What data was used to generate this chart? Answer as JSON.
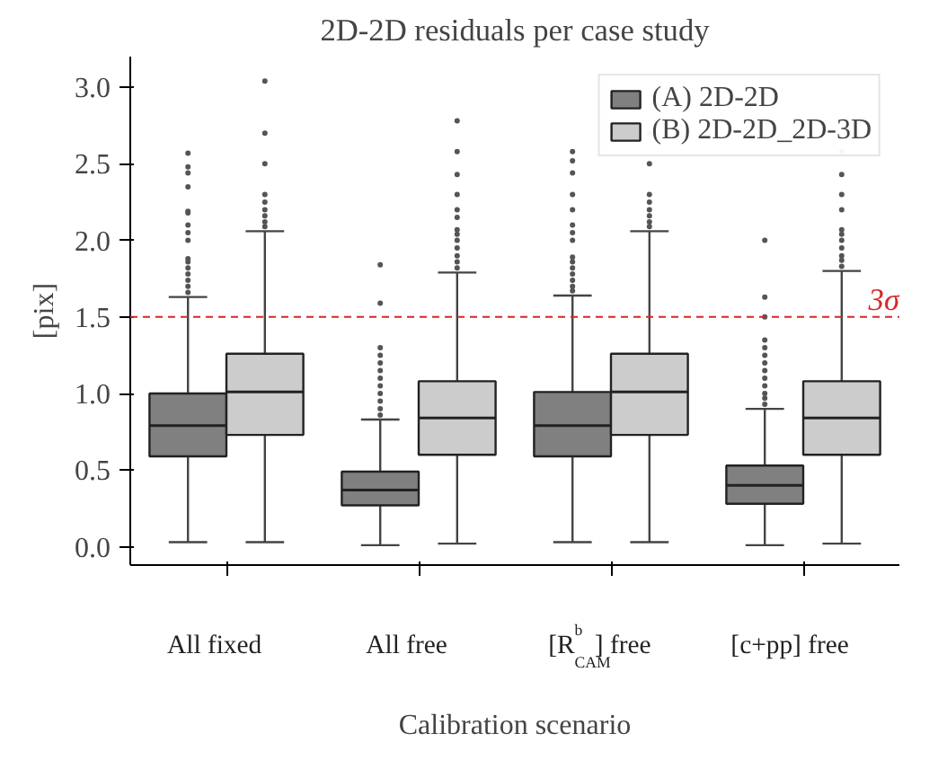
{
  "chart_data": {
    "type": "box",
    "title": "2D-2D residuals per case study",
    "xlabel": "Calibration scenario",
    "ylabel": "[pix]",
    "categories": [
      "All fixed",
      "All free",
      "[R$^{b}$$_{CAM}$] free",
      "[c+pp] free"
    ],
    "ylim": [
      -0.12,
      3.2
    ],
    "yticks": [
      {
        "value": 0,
        "label": "0.0"
      },
      {
        "value": 0.5,
        "label": "0.5"
      },
      {
        "value": 1,
        "label": "1.0"
      },
      {
        "value": 1.5,
        "label": "1.5"
      },
      {
        "value": 2,
        "label": "2.0"
      },
      {
        "value": 2.5,
        "label": "2.5"
      },
      {
        "value": 3,
        "label": "3.0"
      }
    ],
    "legend": "top right",
    "grid": false,
    "ref_lines": [
      {
        "axis": "y",
        "value": 1.5,
        "label": "3σ",
        "color": "#d62728",
        "line_style": "dashed"
      }
    ],
    "series": [
      {
        "name": "(A) 2D-2D",
        "color": "#808080",
        "boxes": [
          {
            "low": 0.03,
            "q1": 0.59,
            "median": 0.79,
            "q3": 1.0,
            "high": 1.63,
            "outliers": [
              1.66,
              1.7,
              1.74,
              1.78,
              1.82,
              1.86,
              1.88,
              2.0,
              2.05,
              2.1,
              2.18,
              2.19,
              2.35,
              2.44,
              2.48,
              2.57
            ]
          },
          {
            "low": 0.01,
            "q1": 0.27,
            "median": 0.37,
            "q3": 0.49,
            "high": 0.83,
            "outliers": [
              0.86,
              0.9,
              0.95,
              1.0,
              1.05,
              1.1,
              1.15,
              1.2,
              1.25,
              1.3,
              1.59,
              1.84
            ]
          },
          {
            "low": 0.03,
            "q1": 0.59,
            "median": 0.79,
            "q3": 1.01,
            "high": 1.64,
            "outliers": [
              1.67,
              1.7,
              1.74,
              1.78,
              1.82,
              1.86,
              1.89,
              2.0,
              2.05,
              2.1,
              2.2,
              2.3,
              2.44,
              2.52,
              2.58
            ]
          },
          {
            "low": 0.01,
            "q1": 0.28,
            "median": 0.4,
            "q3": 0.53,
            "high": 0.9,
            "outliers": [
              0.93,
              0.97,
              1.0,
              1.05,
              1.1,
              1.15,
              1.2,
              1.25,
              1.3,
              1.35,
              1.5,
              1.63,
              2.0
            ]
          }
        ]
      },
      {
        "name": "(B) 2D-2D_2D-3D",
        "color": "#cccccc",
        "boxes": [
          {
            "low": 0.03,
            "q1": 0.73,
            "median": 1.01,
            "q3": 1.26,
            "high": 2.06,
            "outliers": [
              2.09,
              2.12,
              2.16,
              2.2,
              2.25,
              2.3,
              2.5,
              2.7,
              3.04
            ]
          },
          {
            "low": 0.02,
            "q1": 0.6,
            "median": 0.84,
            "q3": 1.08,
            "high": 1.79,
            "outliers": [
              1.82,
              1.86,
              1.9,
              1.95,
              2.0,
              2.04,
              2.07,
              2.15,
              2.2,
              2.3,
              2.43,
              2.58,
              2.78
            ]
          },
          {
            "low": 0.03,
            "q1": 0.73,
            "median": 1.01,
            "q3": 1.26,
            "high": 2.06,
            "outliers": [
              2.09,
              2.12,
              2.16,
              2.2,
              2.25,
              2.3,
              2.5,
              2.7
            ]
          },
          {
            "low": 0.02,
            "q1": 0.6,
            "median": 0.84,
            "q3": 1.08,
            "high": 1.8,
            "outliers": [
              1.83,
              1.87,
              1.9,
              1.95,
              2.0,
              2.04,
              2.07,
              2.2,
              2.3,
              2.43,
              2.58
            ]
          }
        ]
      }
    ]
  }
}
